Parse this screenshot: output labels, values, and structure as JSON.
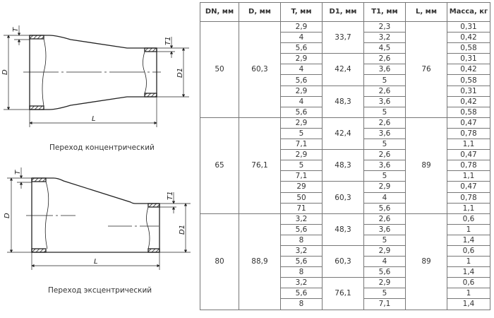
{
  "drawings": {
    "concentric": {
      "caption": "Переход концентрический",
      "labels": {
        "D": "D",
        "T": "T",
        "D1": "D1",
        "T1": "T1",
        "L": "L"
      }
    },
    "eccentric": {
      "caption": "Переход эксцентрический",
      "labels": {
        "D": "D",
        "T": "T",
        "D1": "D1",
        "T1": "T1",
        "L": "L"
      }
    }
  },
  "table": {
    "headers": [
      "DN, мм",
      "D, мм",
      "T, мм",
      "D1, мм",
      "T1, мм",
      "L, мм",
      "Масса, кг"
    ],
    "groups": [
      {
        "DN": "50",
        "D": "60,3",
        "L": "76",
        "subgroups": [
          {
            "D1": "33,7",
            "rows": [
              [
                "2,9",
                "2,3",
                "0,31"
              ],
              [
                "4",
                "3,2",
                "0,42"
              ],
              [
                "5,6",
                "4,5",
                "0,58"
              ]
            ]
          },
          {
            "D1": "42,4",
            "rows": [
              [
                "2,9",
                "2,6",
                "0,31"
              ],
              [
                "4",
                "3,6",
                "0,42"
              ],
              [
                "5,6",
                "5",
                "0,58"
              ]
            ]
          },
          {
            "D1": "48,3",
            "rows": [
              [
                "2,9",
                "2,6",
                "0,31"
              ],
              [
                "4",
                "3,6",
                "0,42"
              ],
              [
                "5,6",
                "5",
                "0,58"
              ]
            ]
          }
        ]
      },
      {
        "DN": "65",
        "D": "76,1",
        "L": "89",
        "subgroups": [
          {
            "D1": "42,4",
            "rows": [
              [
                "2,9",
                "2,6",
                "0,47"
              ],
              [
                "5",
                "3,6",
                "0,78"
              ],
              [
                "7,1",
                "5",
                "1,1"
              ]
            ]
          },
          {
            "D1": "48,3",
            "rows": [
              [
                "2,9",
                "2,6",
                "0,47"
              ],
              [
                "5",
                "3,6",
                "0,78"
              ],
              [
                "7,1",
                "5",
                "1,1"
              ]
            ]
          },
          {
            "D1": "60,3",
            "rows": [
              [
                "29",
                "2,9",
                "0,47"
              ],
              [
                "50",
                "4",
                "0,78"
              ],
              [
                "71",
                "5,6",
                "1,1"
              ]
            ]
          }
        ]
      },
      {
        "DN": "80",
        "D": "88,9",
        "L": "89",
        "subgroups": [
          {
            "D1": "48,3",
            "rows": [
              [
                "3,2",
                "2,6",
                "0,6"
              ],
              [
                "5,6",
                "3,6",
                "1"
              ],
              [
                "8",
                "5",
                "1,4"
              ]
            ]
          },
          {
            "D1": "60,3",
            "rows": [
              [
                "3,2",
                "2,9",
                "0,6"
              ],
              [
                "5,6",
                "4",
                "1"
              ],
              [
                "8",
                "5,6",
                "1,4"
              ]
            ]
          },
          {
            "D1": "76,1",
            "rows": [
              [
                "3,2",
                "2,9",
                "0,6"
              ],
              [
                "5,6",
                "5",
                "1"
              ],
              [
                "8",
                "7,1",
                "1,4"
              ]
            ]
          }
        ]
      }
    ]
  }
}
